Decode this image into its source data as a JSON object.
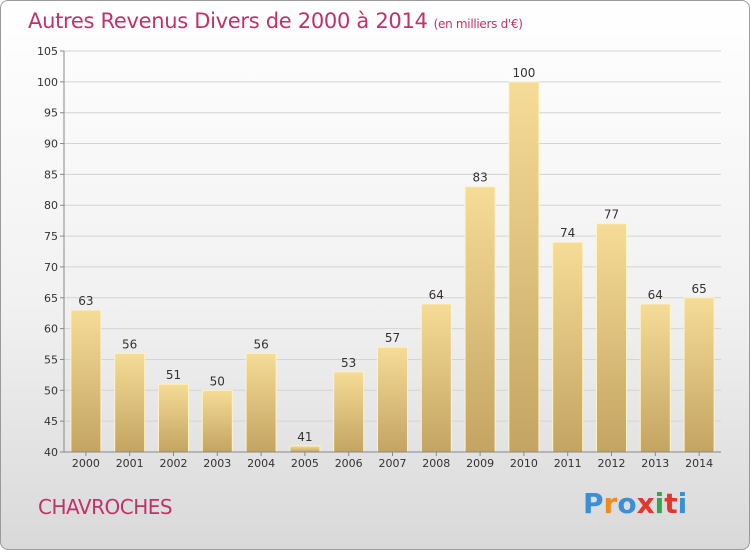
{
  "title": "Autres Revenus Divers de 2000 à 2014",
  "unit": "(en milliers d'€)",
  "location": "CHAVROCHES",
  "brand": {
    "text": "Proxiti",
    "letter_colors": [
      "#3a8fd8",
      "#f08a1c",
      "#3a8fd8",
      "#e8352c",
      "#2fa84f",
      "#e8352c",
      "#3a8fd8"
    ]
  },
  "colors": {
    "bar_top": "#f5dc97",
    "bar_bottom": "#c4a462",
    "bar_edge": "#fdf2c8",
    "title": "#c0326a"
  },
  "chart_data": {
    "type": "bar",
    "categories": [
      "2000",
      "2001",
      "2002",
      "2003",
      "2004",
      "2005",
      "2006",
      "2007",
      "2008",
      "2009",
      "2010",
      "2011",
      "2012",
      "2013",
      "2014"
    ],
    "values": [
      63,
      56,
      51,
      50,
      56,
      41,
      53,
      57,
      64,
      83,
      100,
      74,
      77,
      64,
      65
    ],
    "ylim": [
      40,
      105
    ],
    "yticks": [
      40,
      45,
      50,
      55,
      60,
      65,
      70,
      75,
      80,
      85,
      90,
      95,
      100,
      105
    ],
    "grid": true
  }
}
